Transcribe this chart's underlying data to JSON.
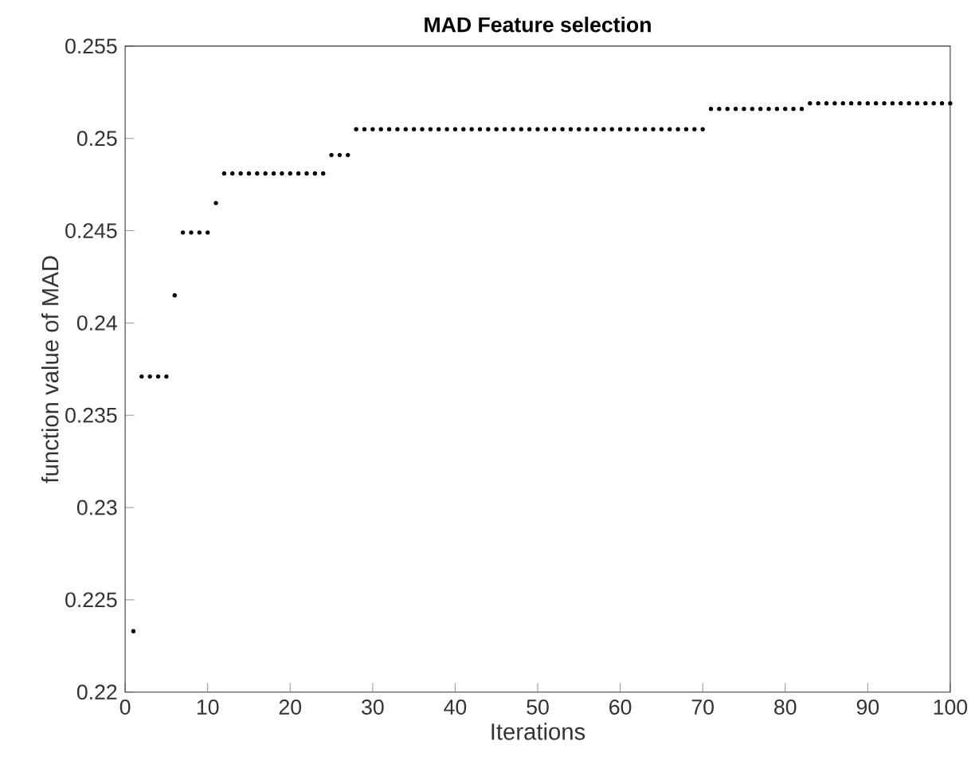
{
  "chart_data": {
    "type": "scatter",
    "title": "MAD Feature selection",
    "xlabel": "Iterations",
    "ylabel": "function value of MAD",
    "x": [
      1,
      2,
      3,
      4,
      5,
      6,
      7,
      8,
      9,
      10,
      11,
      12,
      13,
      14,
      15,
      16,
      17,
      18,
      19,
      20,
      21,
      22,
      23,
      24,
      25,
      26,
      27,
      28,
      29,
      30,
      31,
      32,
      33,
      34,
      35,
      36,
      37,
      38,
      39,
      40,
      41,
      42,
      43,
      44,
      45,
      46,
      47,
      48,
      49,
      50,
      51,
      52,
      53,
      54,
      55,
      56,
      57,
      58,
      59,
      60,
      61,
      62,
      63,
      64,
      65,
      66,
      67,
      68,
      69,
      70,
      71,
      72,
      73,
      74,
      75,
      76,
      77,
      78,
      79,
      80,
      81,
      82,
      83,
      84,
      85,
      86,
      87,
      88,
      89,
      90,
      91,
      92,
      93,
      94,
      95,
      96,
      97,
      98,
      99,
      100
    ],
    "values": [
      0.2233,
      0.2371,
      0.2371,
      0.2371,
      0.2371,
      0.2415,
      0.2449,
      0.2449,
      0.2449,
      0.2449,
      0.2465,
      0.2481,
      0.2481,
      0.2481,
      0.2481,
      0.2481,
      0.2481,
      0.2481,
      0.2481,
      0.2481,
      0.2481,
      0.2481,
      0.2481,
      0.2481,
      0.2491,
      0.2491,
      0.2491,
      0.2505,
      0.2505,
      0.2505,
      0.2505,
      0.2505,
      0.2505,
      0.2505,
      0.2505,
      0.2505,
      0.2505,
      0.2505,
      0.2505,
      0.2505,
      0.2505,
      0.2505,
      0.2505,
      0.2505,
      0.2505,
      0.2505,
      0.2505,
      0.2505,
      0.2505,
      0.2505,
      0.2505,
      0.2505,
      0.2505,
      0.2505,
      0.2505,
      0.2505,
      0.2505,
      0.2505,
      0.2505,
      0.2505,
      0.2505,
      0.2505,
      0.2505,
      0.2505,
      0.2505,
      0.2505,
      0.2505,
      0.2505,
      0.2505,
      0.2505,
      0.2516,
      0.2516,
      0.2516,
      0.2516,
      0.2516,
      0.2516,
      0.2516,
      0.2516,
      0.2516,
      0.2516,
      0.2516,
      0.2516,
      0.2519,
      0.2519,
      0.2519,
      0.2519,
      0.2519,
      0.2519,
      0.2519,
      0.2519,
      0.2519,
      0.2519,
      0.2519,
      0.2519,
      0.2519,
      0.2519,
      0.2519,
      0.2519,
      0.2519,
      0.2519
    ],
    "color": "#000000",
    "marker": "circle",
    "xlim": [
      0,
      100
    ],
    "xticks": [
      0,
      10,
      20,
      30,
      40,
      50,
      60,
      70,
      80,
      90,
      100
    ],
    "ylim": [
      0.22,
      0.255
    ],
    "yticks": [
      0.22,
      0.225,
      0.23,
      0.235,
      0.24,
      0.245,
      0.25,
      0.255
    ]
  }
}
